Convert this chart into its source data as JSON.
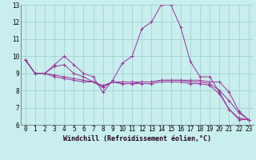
{
  "xlabel": "Windchill (Refroidissement éolien,°C)",
  "background_color": "#c8eeed",
  "line_color": "#993399",
  "grid_color": "#99cccc",
  "xlim": [
    -0.5,
    23.5
  ],
  "ylim": [
    6,
    13
  ],
  "yticks": [
    6,
    7,
    8,
    9,
    10,
    11,
    12,
    13
  ],
  "xticks": [
    0,
    1,
    2,
    3,
    4,
    5,
    6,
    7,
    8,
    9,
    10,
    11,
    12,
    13,
    14,
    15,
    16,
    17,
    18,
    19,
    20,
    21,
    22,
    23
  ],
  "lines": [
    [
      9.8,
      9.0,
      9.0,
      9.5,
      10.0,
      9.5,
      9.0,
      8.8,
      7.9,
      8.6,
      9.6,
      10.0,
      11.6,
      12.0,
      13.0,
      13.0,
      11.7,
      9.7,
      8.8,
      8.8,
      7.9,
      6.9,
      6.3,
      6.3
    ],
    [
      9.8,
      9.0,
      9.0,
      9.4,
      9.5,
      9.0,
      8.8,
      8.5,
      8.2,
      8.5,
      8.4,
      8.4,
      8.5,
      8.5,
      8.6,
      8.6,
      8.6,
      8.6,
      8.6,
      8.5,
      8.5,
      7.9,
      6.8,
      6.3
    ],
    [
      9.8,
      9.0,
      9.0,
      8.9,
      8.8,
      8.7,
      8.6,
      8.5,
      8.3,
      8.5,
      8.5,
      8.5,
      8.5,
      8.5,
      8.6,
      8.6,
      8.6,
      8.5,
      8.5,
      8.4,
      8.0,
      7.4,
      6.7,
      6.3
    ],
    [
      9.8,
      9.0,
      9.0,
      8.8,
      8.7,
      8.6,
      8.5,
      8.5,
      8.2,
      8.5,
      8.4,
      8.4,
      8.4,
      8.4,
      8.5,
      8.5,
      8.5,
      8.4,
      8.4,
      8.3,
      7.8,
      6.9,
      6.4,
      6.3
    ]
  ]
}
